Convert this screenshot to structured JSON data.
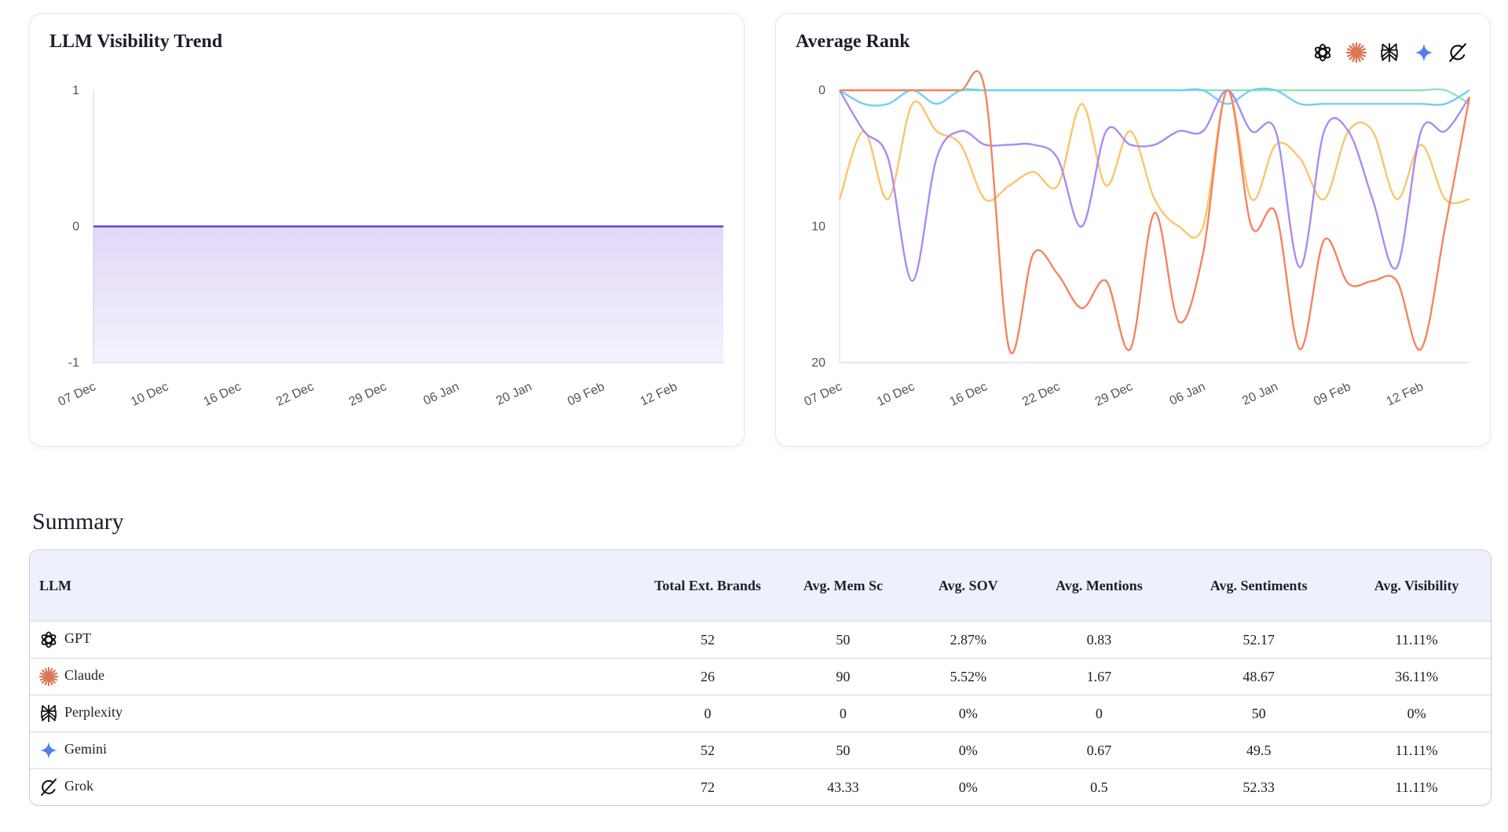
{
  "chart_data": [
    {
      "type": "area",
      "title": "LLM Visibility Trend",
      "categories": [
        "07 Dec",
        null,
        null,
        "10 Dec",
        null,
        null,
        "16 Dec",
        null,
        null,
        "22 Dec",
        null,
        null,
        "29 Dec",
        null,
        null,
        "06 Jan",
        null,
        null,
        "20 Jan",
        null,
        null,
        "09 Feb",
        null,
        null,
        "12 Feb",
        null,
        null
      ],
      "values": [
        0,
        0,
        0,
        0,
        0,
        0,
        0,
        0,
        0,
        0,
        0,
        0,
        0,
        0,
        0,
        0,
        0,
        0,
        0,
        0,
        0,
        0,
        0,
        0,
        0,
        0,
        0
      ],
      "color": "#6c3fd8",
      "ylim": [
        -1,
        1
      ],
      "yticks": [
        -1,
        0,
        1
      ],
      "grid": false
    },
    {
      "type": "line",
      "title": "Average Rank",
      "categories": [
        "07 Dec",
        null,
        null,
        "10 Dec",
        null,
        null,
        "16 Dec",
        null,
        null,
        "22 Dec",
        null,
        null,
        "29 Dec",
        null,
        null,
        "06 Jan",
        null,
        null,
        "20 Jan",
        null,
        null,
        "09 Feb",
        null,
        null,
        "12 Feb",
        null,
        null
      ],
      "series": [
        {
          "color": "#8ee3b3",
          "values": [
            0,
            0,
            0,
            0,
            0,
            0,
            0,
            0,
            0,
            0,
            0,
            0,
            0,
            0,
            0,
            0,
            0,
            0,
            0,
            0,
            0,
            0,
            0,
            0,
            0,
            0,
            1
          ]
        },
        {
          "color": "#70cff6",
          "values": [
            0,
            1,
            1,
            0,
            1,
            0,
            0,
            0,
            0,
            0,
            0,
            0,
            0,
            0,
            0,
            0,
            1,
            0,
            0,
            1,
            1,
            1,
            1,
            1,
            1,
            1,
            0
          ]
        },
        {
          "color": "#fcc46a",
          "values": [
            8,
            3,
            8,
            1,
            3,
            4,
            8,
            7,
            6,
            7,
            1,
            7,
            3,
            8,
            10,
            10,
            0,
            8,
            4,
            5,
            8,
            3,
            3,
            8,
            4,
            8,
            8
          ]
        },
        {
          "color": "#a98bf5",
          "values": [
            0,
            3,
            5,
            14,
            5,
            3,
            4,
            4,
            4,
            5,
            10,
            3,
            4,
            4,
            3,
            3,
            0,
            3,
            3,
            13,
            3,
            3,
            8,
            13,
            3,
            3,
            0.5
          ]
        },
        {
          "color": "#f4845f",
          "values": [
            0,
            0,
            0,
            0,
            0,
            0,
            0,
            19,
            12,
            13.5,
            16,
            14,
            19,
            9,
            17,
            12,
            0,
            10,
            9,
            19,
            11,
            14.2,
            14,
            14,
            19,
            10,
            0.5
          ]
        }
      ],
      "ylim": [
        0,
        20
      ],
      "yticks": [
        0,
        10,
        20
      ],
      "y_inverted": true,
      "grid": false
    }
  ],
  "summary": {
    "title": "Summary",
    "columns": [
      "LLM",
      "Total Ext. Brands",
      "Avg. Mem Sc",
      "Avg. SOV",
      "Avg. Mentions",
      "Avg. Sentiments",
      "Avg. Visibility"
    ],
    "rows": [
      [
        "GPT",
        "52",
        "50",
        "2.87%",
        "0.83",
        "52.17",
        "11.11%"
      ],
      [
        "Claude",
        "26",
        "90",
        "5.52%",
        "1.67",
        "48.67",
        "36.11%"
      ],
      [
        "Perplexity",
        "0",
        "0",
        "0%",
        "0",
        "50",
        "0%"
      ],
      [
        "Gemini",
        "52",
        "50",
        "0%",
        "0.67",
        "49.5",
        "11.11%"
      ],
      [
        "Grok",
        "72",
        "43.33",
        "0%",
        "0.5",
        "52.33",
        "11.11%"
      ]
    ]
  }
}
